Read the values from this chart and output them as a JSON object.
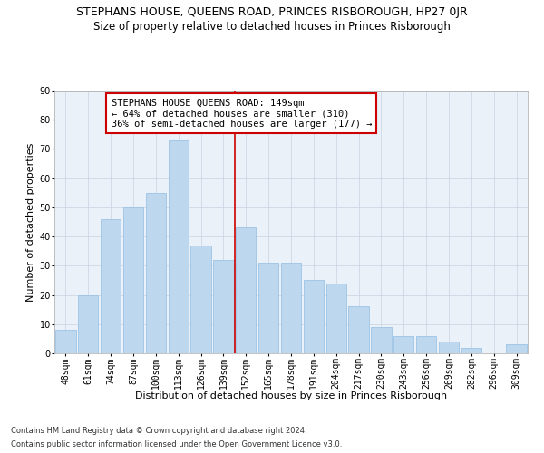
{
  "title": "STEPHANS HOUSE, QUEENS ROAD, PRINCES RISBOROUGH, HP27 0JR",
  "subtitle": "Size of property relative to detached houses in Princes Risborough",
  "xlabel": "Distribution of detached houses by size in Princes Risborough",
  "ylabel": "Number of detached properties",
  "footer_line1": "Contains HM Land Registry data © Crown copyright and database right 2024.",
  "footer_line2": "Contains public sector information licensed under the Open Government Licence v3.0.",
  "categories": [
    "48sqm",
    "61sqm",
    "74sqm",
    "87sqm",
    "100sqm",
    "113sqm",
    "126sqm",
    "139sqm",
    "152sqm",
    "165sqm",
    "178sqm",
    "191sqm",
    "204sqm",
    "217sqm",
    "230sqm",
    "243sqm",
    "256sqm",
    "269sqm",
    "282sqm",
    "296sqm",
    "309sqm"
  ],
  "values": [
    8,
    20,
    46,
    50,
    55,
    73,
    37,
    32,
    43,
    31,
    31,
    25,
    24,
    16,
    9,
    6,
    6,
    4,
    2,
    0,
    3
  ],
  "bar_color": "#bdd7ee",
  "bar_edge_color": "#9dc3e6",
  "vline_color": "#cc0000",
  "annotation_text": "STEPHANS HOUSE QUEENS ROAD: 149sqm\n← 64% of detached houses are smaller (310)\n36% of semi-detached houses are larger (177) →",
  "annotation_box_color": "#ffffff",
  "annotation_box_edge_color": "#cc0000",
  "ylim": [
    0,
    90
  ],
  "yticks": [
    0,
    10,
    20,
    30,
    40,
    50,
    60,
    70,
    80,
    90
  ],
  "background_color": "#ffffff",
  "axes_bg_color": "#eaf1f8",
  "grid_color": "#c8d4e3",
  "title_fontsize": 9,
  "subtitle_fontsize": 8.5,
  "xlabel_fontsize": 8,
  "ylabel_fontsize": 8,
  "tick_fontsize": 7,
  "annotation_fontsize": 7.5,
  "footer_fontsize": 6
}
